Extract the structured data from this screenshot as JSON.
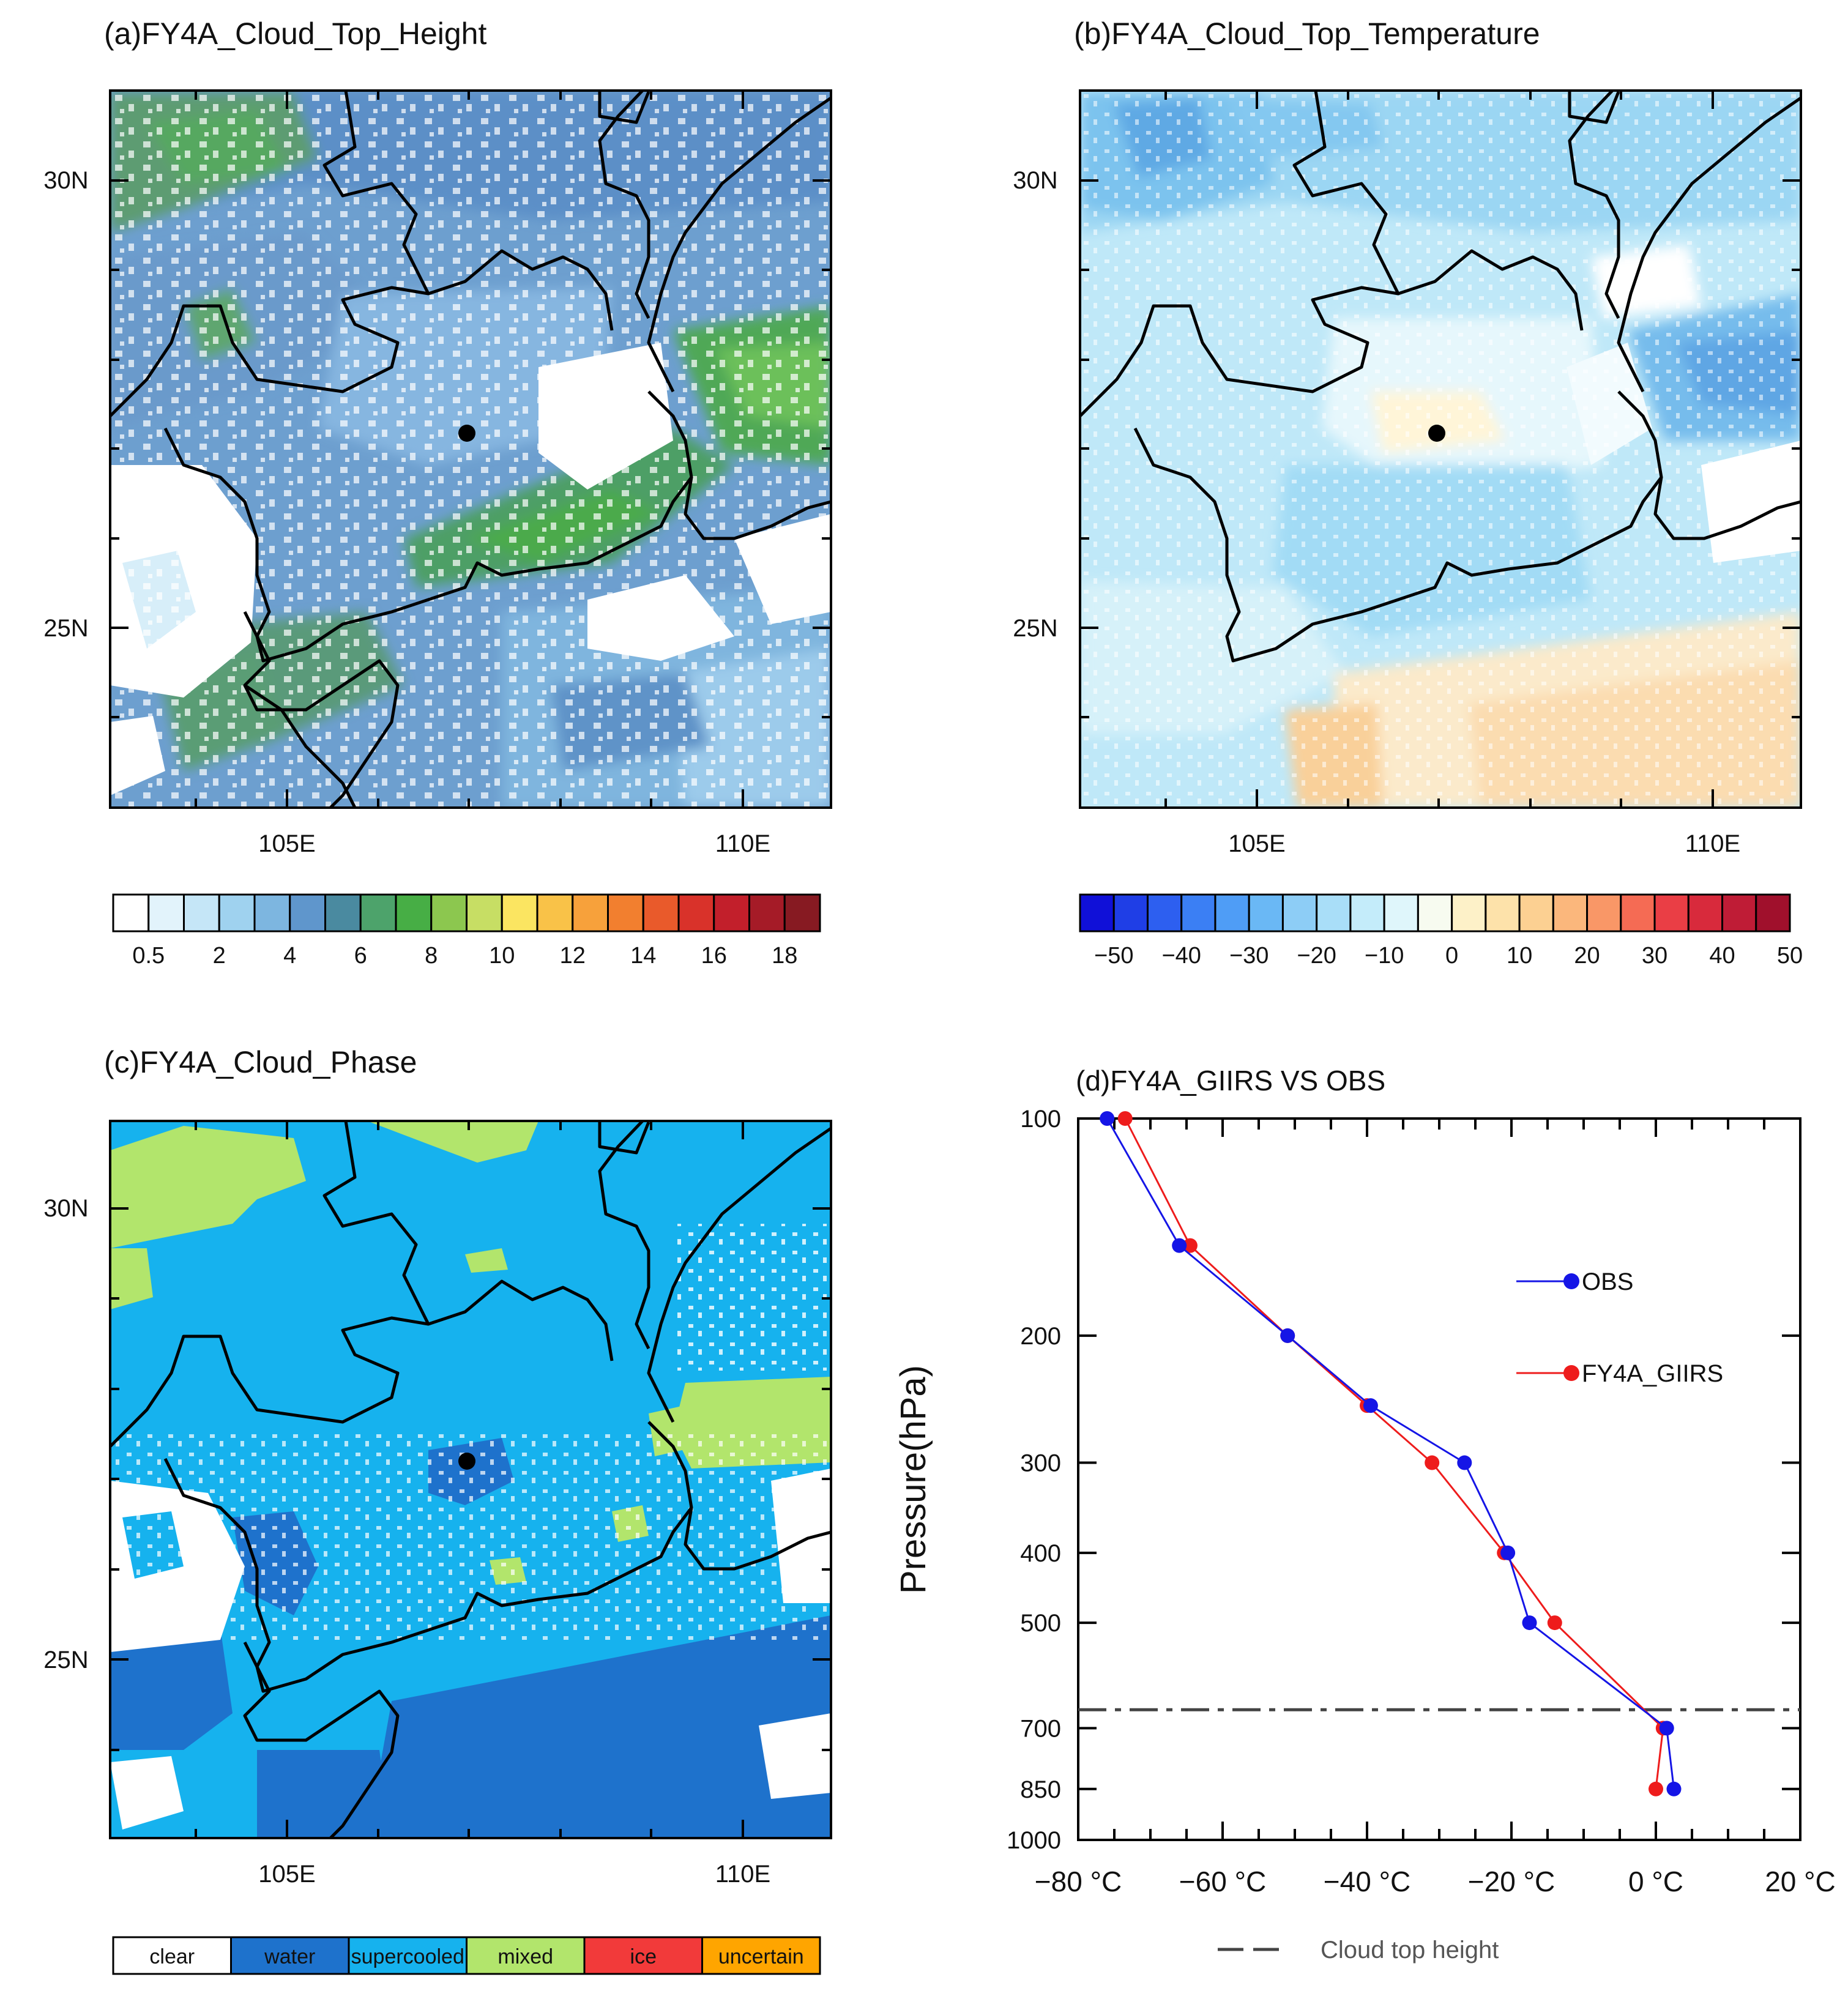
{
  "chart_data": [
    {
      "type": "heatmap",
      "title": "(a)FY4A_Cloud_Top_Height",
      "x_ticks": [
        "105E",
        "110E"
      ],
      "y_ticks": [
        "30N",
        "25N"
      ],
      "colorbar": {
        "labels": [
          "0.5",
          "2",
          "4",
          "6",
          "8",
          "10",
          "12",
          "14",
          "16",
          "18"
        ],
        "colors": [
          "#ffffff",
          "#e2f3fb",
          "#c5e6f7",
          "#9fd2ef",
          "#7db6e0",
          "#5f96cc",
          "#4a8aa0",
          "#4da36b",
          "#47ae45",
          "#8cc74f",
          "#c7de64",
          "#fbe561",
          "#f9c248",
          "#f7a13b",
          "#f27f2f",
          "#e95a2b",
          "#d9322a",
          "#c21f2b",
          "#a51b27",
          "#871a22"
        ]
      }
    },
    {
      "type": "heatmap",
      "title": "(b)FY4A_Cloud_Top_Temperature",
      "x_ticks": [
        "105E",
        "110E"
      ],
      "y_ticks": [
        "30N",
        "25N"
      ],
      "colorbar": {
        "labels": [
          "−50",
          "−40",
          "−30",
          "−20",
          "−10",
          "0",
          "10",
          "20",
          "30",
          "40",
          "50"
        ],
        "colors": [
          "#1010d8",
          "#1f3ee6",
          "#2d5ff0",
          "#3b7ff4",
          "#4f9df6",
          "#6ab8f5",
          "#8dcdf6",
          "#a9def8",
          "#c4ecfa",
          "#dff6fb",
          "#f7fbf0",
          "#fdf1c8",
          "#fde2aa",
          "#fcd092",
          "#fbb77c",
          "#f99767",
          "#f56b54",
          "#ea3e45",
          "#d82a3c",
          "#bf1c36",
          "#a0102c"
        ]
      }
    },
    {
      "type": "heatmap",
      "title": "(c)FY4A_Cloud_Phase",
      "x_ticks": [
        "105E",
        "110E"
      ],
      "y_ticks": [
        "30N",
        "25N"
      ],
      "colorbar": {
        "labels": [
          "clear",
          "water",
          "supercooled",
          "mixed",
          "ice",
          "uncertain"
        ],
        "colors": [
          "#ffffff",
          "#1e72cc",
          "#16b2ee",
          "#b2e56c",
          "#f23a3a",
          "#ffa500"
        ]
      }
    },
    {
      "type": "line",
      "title": "(d)FY4A_GIIRS VS OBS",
      "ylabel": "Pressure(hPa)",
      "xlabel": "",
      "xlim": [
        -80,
        20
      ],
      "ylim": [
        1000,
        100
      ],
      "y_scale": "log",
      "x_tick_labels": [
        "−80 °C",
        "−60 °C",
        "−40 °C",
        "−20 °C",
        "0 °C",
        "20 °C"
      ],
      "x_tick_values": [
        -80,
        -60,
        -40,
        -20,
        0,
        20
      ],
      "y_tick_values": [
        100,
        200,
        300,
        400,
        500,
        700,
        850,
        1000
      ],
      "y_tick_labels": [
        "100",
        "200",
        "300",
        "400",
        "500",
        "700",
        "850",
        "1000"
      ],
      "series": [
        {
          "name": "OBS",
          "color": "#1515e6",
          "points": [
            [
              -76,
              100
            ],
            [
              -66,
              150
            ],
            [
              -51,
              200
            ],
            [
              -39.5,
              250
            ],
            [
              -26.5,
              300
            ],
            [
              -20.5,
              400
            ],
            [
              -17.5,
              500
            ],
            [
              1.5,
              700
            ],
            [
              2.5,
              850
            ]
          ]
        },
        {
          "name": "FY4A_GIIRS",
          "color": "#ee1c1c",
          "points": [
            [
              -73.5,
              100
            ],
            [
              -64.5,
              150
            ],
            [
              -51,
              200
            ],
            [
              -40,
              250
            ],
            [
              -31,
              300
            ],
            [
              -21,
              400
            ],
            [
              -14,
              500
            ],
            [
              1,
              700
            ],
            [
              0,
              850
            ]
          ]
        }
      ],
      "reference_line": {
        "name": "Cloud top height",
        "pressure": 660
      }
    }
  ]
}
